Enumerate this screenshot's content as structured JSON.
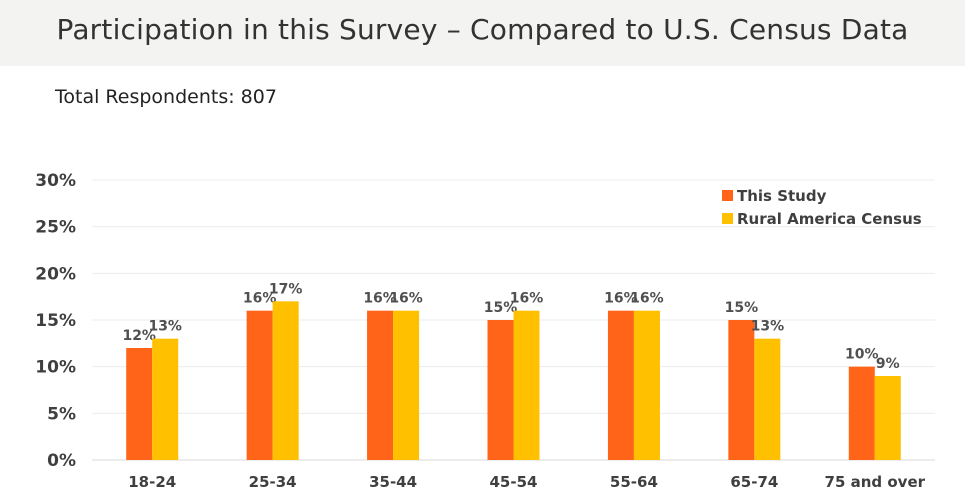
{
  "header": {
    "title": "Participation in this Survey – Compared to U.S. Census Data"
  },
  "subtitle": "Total Respondents: 807",
  "colors": {
    "this_study": "#ff6419",
    "census": "#ffc000"
  },
  "chart_data": {
    "type": "bar",
    "categories": [
      "18-24",
      "25-34",
      "35-44",
      "45-54",
      "55-64",
      "65-74",
      "75 and over"
    ],
    "series": [
      {
        "name": "This Study",
        "values": [
          12,
          16,
          16,
          15,
          16,
          15,
          10
        ],
        "value_labels": [
          "12%",
          "16%",
          "16%",
          "15%",
          "16%",
          "15%",
          "10%"
        ]
      },
      {
        "name": "Rural America Census",
        "values": [
          13,
          17,
          16,
          16,
          16,
          13,
          9
        ],
        "value_labels": [
          "13%",
          "17%",
          "16%",
          "16%",
          "16%",
          "13%",
          "9%"
        ]
      }
    ],
    "ylim": [
      0,
      30
    ],
    "yticks": [
      0,
      5,
      10,
      15,
      20,
      25,
      30
    ],
    "ytick_labels": [
      "0%",
      "5%",
      "10%",
      "15%",
      "20%",
      "25%",
      "30%"
    ],
    "grid": true,
    "legend_position": "top-right",
    "xlabel": "",
    "ylabel": ""
  }
}
